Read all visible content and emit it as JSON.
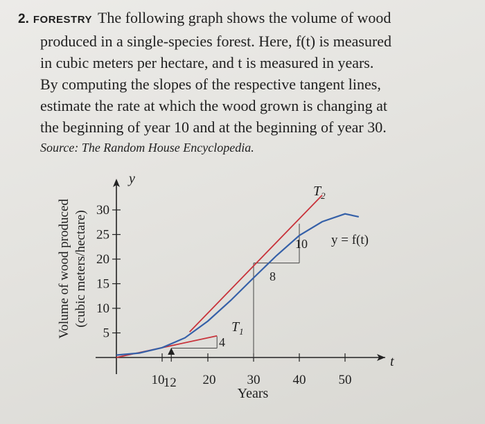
{
  "problem": {
    "number": "2.",
    "topic": "FORESTRY",
    "lines": [
      "The following graph shows the volume of wood",
      "produced in a single-species forest. Here, f(t) is measured",
      "in cubic meters per hectare, and t is measured in years.",
      "By computing the slopes of the respective tangent lines,",
      "estimate the rate at which the wood grown is changing at",
      "the beginning of year 10 and at the beginning of year 30."
    ],
    "source": "Source: The Random House Encyclopedia."
  },
  "chart_data": {
    "type": "line",
    "xlabel": "Years",
    "ylabel": [
      "Volume of wood produced",
      "(cubic meters/hectare)"
    ],
    "x_axis_symbol": "t",
    "y_axis_symbol": "y",
    "x_ticks": [
      10,
      20,
      30,
      40,
      50
    ],
    "y_ticks": [
      5,
      10,
      15,
      20,
      25,
      30
    ],
    "x_marked_point": 12,
    "series": [
      {
        "name": "y = f(t)",
        "x": [
          0,
          5,
          10,
          15,
          20,
          25,
          30,
          35,
          40,
          45,
          50,
          53
        ],
        "y": [
          0.5,
          0.9,
          2.0,
          4.0,
          7.4,
          11.6,
          16.2,
          20.7,
          24.8,
          27.6,
          29.2,
          28.6
        ]
      }
    ],
    "tangents": [
      {
        "label": "T1",
        "from": [
          0,
          0
        ],
        "to": [
          22,
          4.4
        ],
        "run": [
          12,
          2.0,
          22,
          2.0
        ],
        "rise_label": "4",
        "run_label": ""
      },
      {
        "label": "T2",
        "from": [
          16,
          5.2
        ],
        "to": [
          45,
          33
        ],
        "rise_label": "8",
        "run_label": "10"
      }
    ]
  },
  "labels": {
    "curve": "y = f(t)",
    "t1": "T",
    "t1_sub": "1",
    "t2": "T",
    "t2_sub": "2",
    "run_10": "10",
    "rise_8": "8",
    "rise_4": "4"
  }
}
